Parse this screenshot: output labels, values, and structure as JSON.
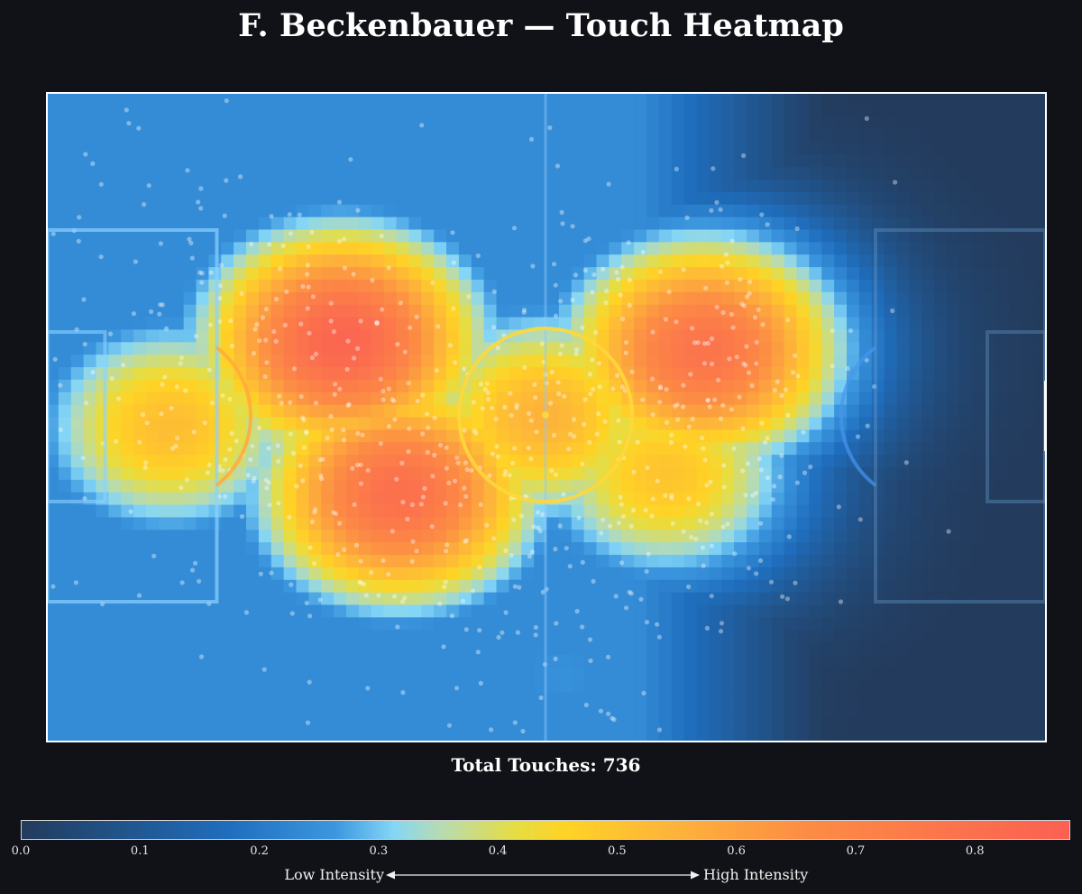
{
  "title": "F. Beckenbauer — Touch Heatmap",
  "total_touches_label": "Total Touches: 736",
  "colorbar": {
    "ticks": [
      "0.0",
      "0.1",
      "0.2",
      "0.3",
      "0.4",
      "0.5",
      "0.6",
      "0.7",
      "0.8"
    ],
    "range": [
      0.0,
      0.88
    ],
    "low_label": "Low Intensity",
    "high_label": "High Intensity",
    "colors": [
      "#233b5c",
      "#1f6fbf",
      "#84d6f6",
      "#ffd325",
      "#fb6053"
    ]
  },
  "chart_data": {
    "type": "heatmap",
    "title": "F. Beckenbauer — Touch Heatmap",
    "subtitle": "Total Touches: 736",
    "total_touches": 736,
    "pitch": {
      "length": 105,
      "width": 68
    },
    "intensity_range": [
      0.0,
      0.88
    ],
    "hotspots": [
      {
        "x": 31,
        "y": 26,
        "intensity": 0.85
      },
      {
        "x": 37,
        "y": 42,
        "intensity": 0.8
      },
      {
        "x": 52,
        "y": 34,
        "intensity": 0.55
      },
      {
        "x": 69,
        "y": 27,
        "intensity": 0.78
      },
      {
        "x": 13,
        "y": 35,
        "intensity": 0.52
      },
      {
        "x": 65,
        "y": 40,
        "intensity": 0.5
      },
      {
        "x": 54,
        "y": 61,
        "intensity": 0.25
      },
      {
        "x": 8,
        "y": 12,
        "intensity": 0.18
      }
    ],
    "colorbar_ticks": [
      0.0,
      0.1,
      0.2,
      0.3,
      0.4,
      0.5,
      0.6,
      0.7,
      0.8
    ],
    "colorbar_labels": [
      "Low Intensity",
      "High Intensity"
    ]
  }
}
